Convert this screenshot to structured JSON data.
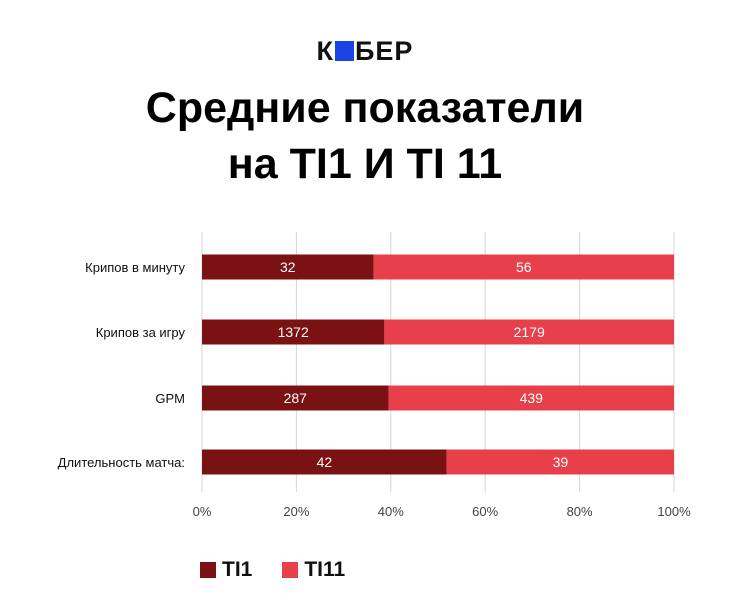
{
  "brand": {
    "logo_left": "К",
    "logo_right": "БЕР",
    "logo_color": "#1a44e6"
  },
  "title_line1": "Средние показатели",
  "title_line2": "на TI1 И TI 11",
  "chart_data": {
    "type": "bar",
    "orientation": "horizontal",
    "stacking": "percent",
    "categories": [
      "Крипов в минуту",
      "Крипов за игру",
      "GPM",
      "Длительность матча:"
    ],
    "series": [
      {
        "name": "TI1",
        "values": [
          32,
          1372,
          287,
          42
        ],
        "color": "#7a1113"
      },
      {
        "name": "TI11",
        "values": [
          56,
          2179,
          439,
          39
        ],
        "color": "#e8404a"
      }
    ],
    "xticks": [
      "0%",
      "20%",
      "40%",
      "60%",
      "80%",
      "100%"
    ],
    "xlim": [
      0,
      100
    ],
    "grid": true,
    "legend": "bottom-left"
  }
}
